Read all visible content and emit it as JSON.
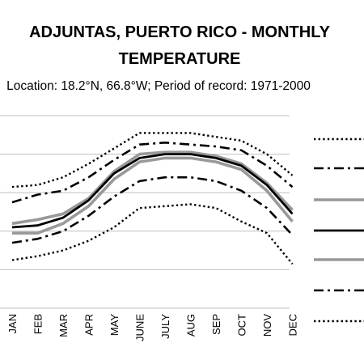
{
  "chart_data": {
    "type": "line",
    "title_line1": "ADJUNTAS, PUERTO RICO - MONTHLY",
    "title_line2": "TEMPERATURE",
    "subtitle": "Location: 18.2°N, 66.8°W; Period of record: 1971-2000",
    "categories": [
      "JAN",
      "FEB",
      "MAR",
      "APR",
      "MAY",
      "JUNE",
      "JULY",
      "AUG",
      "SEP",
      "OCT",
      "NOV",
      "DEC"
    ],
    "grid": true,
    "legend_position": "right",
    "ylim": [
      0,
      100
    ],
    "series": [
      {
        "style": "dotted",
        "color": "#000000",
        "values": [
          63,
          64,
          68,
          75,
          83,
          91,
          91,
          91,
          89,
          87,
          80,
          69
        ]
      },
      {
        "style": "dashdot",
        "color": "#000000",
        "values": [
          55,
          59,
          61,
          68,
          77,
          85,
          86,
          85,
          84,
          82,
          74,
          63
        ]
      },
      {
        "style": "solid",
        "color": "#999999",
        "values": [
          44,
          46,
          49,
          57,
          71,
          80,
          81,
          81,
          79,
          75,
          65,
          51
        ]
      },
      {
        "style": "solid",
        "color": "#000000",
        "values": [
          42,
          43,
          47,
          56,
          70,
          78,
          80,
          80,
          78,
          74,
          64,
          49
        ]
      },
      {
        "style": "solid",
        "color": "#999999",
        "values": [
          39,
          39,
          44,
          53,
          67,
          76,
          78,
          78,
          76,
          72,
          61,
          45
        ]
      },
      {
        "style": "dashdot",
        "color": "#000000",
        "values": [
          34,
          36,
          40,
          48,
          58,
          66,
          68,
          68,
          66,
          61,
          52,
          38
        ]
      },
      {
        "style": "dotted",
        "color": "#000000",
        "values": [
          25,
          27,
          30,
          35,
          42,
          52,
          53,
          54,
          52,
          45,
          39,
          23
        ]
      }
    ]
  }
}
